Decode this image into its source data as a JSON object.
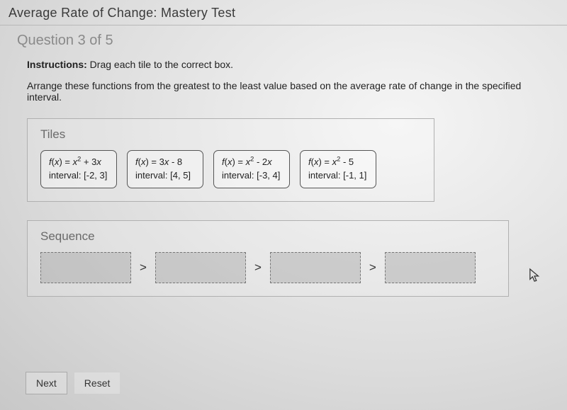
{
  "header": {
    "title": "Average Rate of Change: Mastery Test"
  },
  "question": {
    "counter": "Question 3 of 5",
    "instructions_label": "Instructions:",
    "instructions_text": "Drag each tile to the correct box.",
    "prompt": "Arrange these functions from the greatest to the least value based on the average rate of change in the specified interval."
  },
  "tiles_panel": {
    "title": "Tiles",
    "tiles": [
      {
        "func_html": "f(x) = x<sup>2</sup> + 3x",
        "interval": "interval: [-2, 3]"
      },
      {
        "func_html": "f(x) = 3x - 8",
        "interval": "interval: [4, 5]"
      },
      {
        "func_html": "f(x) = x<sup>2</sup> - 2x",
        "interval": "interval: [-3, 4]"
      },
      {
        "func_html": "f(x) = x<sup>2</sup> - 5",
        "interval": "interval: [-1, 1]"
      }
    ]
  },
  "sequence_panel": {
    "title": "Sequence",
    "slot_count": 4,
    "separator": ">"
  },
  "buttons": {
    "next": "Next",
    "reset": "Reset"
  },
  "style": {
    "background_color": "#e8e8e8",
    "panel_border": "#b0b0b0",
    "tile_border": "#555555",
    "slot_border": "#777777",
    "slot_fill": "rgba(150,150,150,0.35)",
    "title_color": "#3a3a3a",
    "muted_text": "#8a8a8a"
  }
}
